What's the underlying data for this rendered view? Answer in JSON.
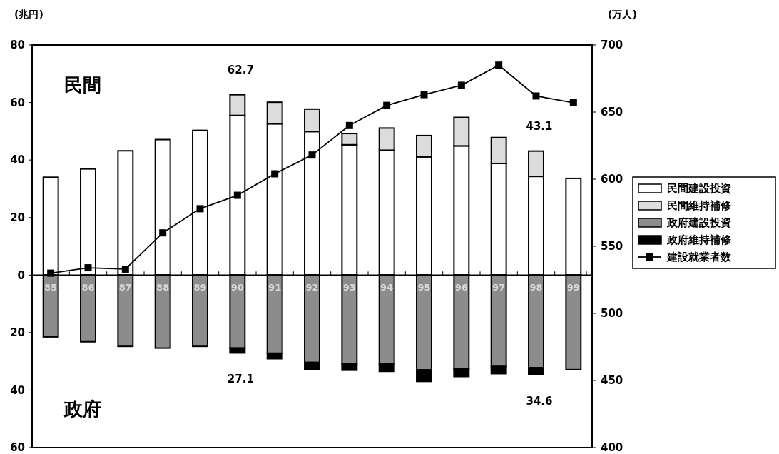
{
  "chart_data": {
    "type": "bar",
    "stacked": true,
    "ylabel": "(兆円)",
    "y2label": "(万人)",
    "categories": [
      "85",
      "86",
      "87",
      "88",
      "89",
      "90",
      "91",
      "92",
      "93",
      "94",
      "95",
      "96",
      "97",
      "98",
      "99"
    ],
    "series": [
      {
        "name": "民間建設投資",
        "color": "#ffffff",
        "values": [
          34.0,
          36.9,
          43.2,
          47.1,
          50.3,
          55.5,
          52.6,
          49.9,
          45.3,
          43.4,
          41.1,
          44.9,
          38.8,
          34.3,
          33.6
        ]
      },
      {
        "name": "民間維持補修",
        "color": "#dcdcdc",
        "values": [
          null,
          null,
          null,
          null,
          null,
          7.2,
          7.5,
          7.8,
          3.9,
          7.7,
          7.4,
          9.9,
          9.0,
          8.8,
          null
        ]
      },
      {
        "name": "政府建設投資",
        "color": "#8c8c8c",
        "values": [
          -21.5,
          -23.2,
          -24.8,
          -25.4,
          -24.8,
          -25.4,
          -27.2,
          -30.4,
          -31.0,
          -31.0,
          -33.0,
          -32.6,
          -31.8,
          -32.2,
          -32.9
        ]
      },
      {
        "name": "政府維持補修",
        "color": "#000000",
        "values": [
          null,
          null,
          null,
          null,
          null,
          -1.7,
          -1.9,
          -2.4,
          -2.1,
          -2.5,
          -4.0,
          -2.7,
          -2.5,
          -2.4,
          null
        ]
      },
      {
        "name": "建設就業者数",
        "type": "line",
        "axis": "y2",
        "color": "#000000",
        "marker": "square",
        "values": [
          530,
          534,
          533,
          560,
          578,
          588,
          604,
          618,
          640,
          655,
          663,
          670,
          685,
          662,
          657
        ]
      }
    ],
    "ylim": [
      -60,
      80
    ],
    "yticks": [
      {
        "value": -60,
        "label": "60"
      },
      {
        "value": -40,
        "label": "40"
      },
      {
        "value": -20,
        "label": "20"
      },
      0,
      20,
      40,
      60,
      80
    ],
    "y2lim": [
      400,
      700
    ],
    "y2ticks": [
      400,
      450,
      500,
      550,
      600,
      650,
      700
    ],
    "legend": "right",
    "grid": false,
    "annotations": [
      "民間",
      "政府",
      {
        "text": "62.7",
        "x": "90",
        "y": 62.7
      },
      {
        "text": "43.1",
        "x": "98",
        "y": 43.1
      },
      {
        "text": "27.1",
        "x": "90",
        "y": -27.1
      },
      {
        "text": "34.6",
        "x": "98",
        "y": -34.6
      }
    ]
  }
}
